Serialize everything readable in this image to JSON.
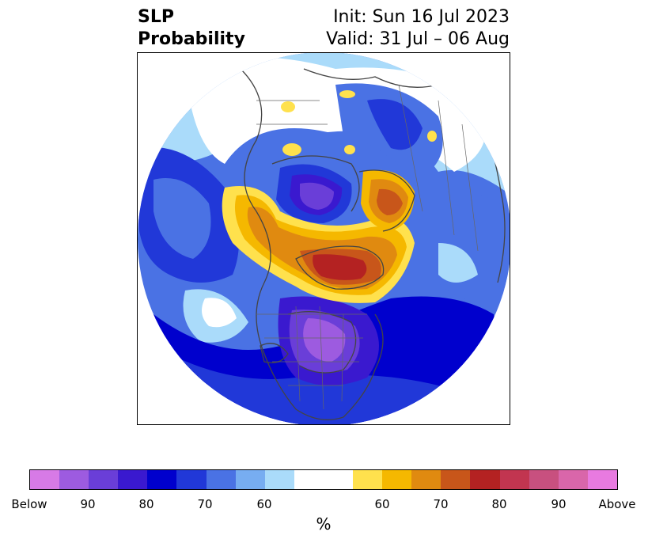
{
  "title": {
    "left_line1": "SLP",
    "left_line2": "Probability",
    "right_line1": "Init: Sun 16 Jul 2023",
    "right_line2": "Valid: 31 Jul – 06 Aug"
  },
  "colorbar": {
    "colors": [
      "#d77ae6",
      "#9d5be0",
      "#6a3ed8",
      "#3a19cf",
      "#0000cd",
      "#2138d8",
      "#4a72e4",
      "#77adf1",
      "#aadbfa",
      "#ffffff",
      "#ffffff",
      "#ffe14d",
      "#f5b800",
      "#e08a10",
      "#c8561a",
      "#b42222",
      "#c23550",
      "#c8507f",
      "#d966aa",
      "#e87ae0"
    ],
    "tick_labels": [
      "Below",
      "90",
      "80",
      "70",
      "60",
      "60",
      "70",
      "80",
      "90",
      "Above"
    ],
    "unit": "%"
  }
}
